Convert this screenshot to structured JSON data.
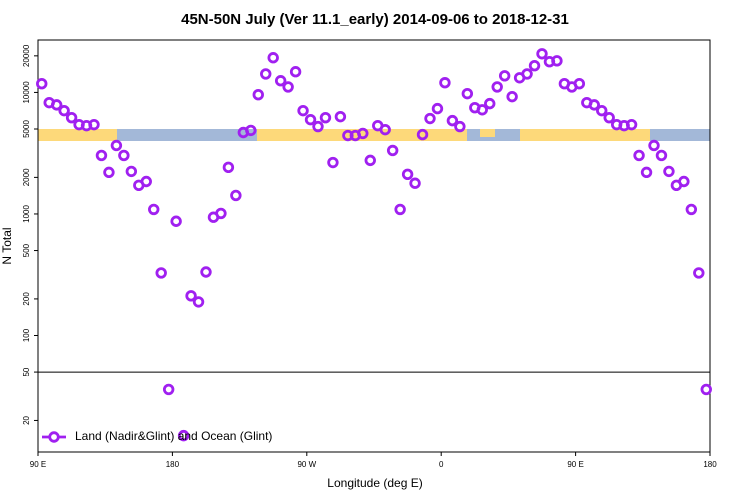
{
  "chart_data": {
    "type": "scatter",
    "title": "45N-50N July (Ver 11.1_early)   2014-09-06 to 2018-12-31",
    "x_label": "Longitude (deg E)",
    "y_label": "N Total",
    "xlim": [
      90,
      540
    ],
    "xticks": [
      {
        "value": 90,
        "label": "90 E"
      },
      {
        "value": 180,
        "label": "180"
      },
      {
        "value": 270,
        "label": "90 W"
      },
      {
        "value": 360,
        "label": "0"
      },
      {
        "value": 450,
        "label": "90 E"
      },
      {
        "value": 540,
        "label": "180"
      }
    ],
    "ylim": [
      11,
      27000
    ],
    "yticks": [
      20,
      50,
      100,
      200,
      500,
      1000,
      2000,
      5000,
      10000,
      20000
    ],
    "log_y": true,
    "reference_line": 50,
    "legend": "bottom-left",
    "series": [
      {
        "name": "Land (Nadir&Glint) and Ocean (Glint)",
        "color": "#a020f0",
        "x": [
          92.5,
          97.5,
          102.5,
          107.5,
          112.5,
          117.5,
          122.5,
          127.5,
          132.5,
          137.5,
          142.5,
          147.5,
          152.5,
          157.5,
          162.5,
          167.5,
          172.5,
          177.5,
          182.5,
          187.5,
          192.5,
          197.5,
          202.5,
          207.5,
          212.5,
          217.5,
          222.5,
          227.5,
          232.5,
          237.5,
          242.5,
          247.5,
          252.5,
          257.5,
          262.5,
          267.5,
          272.5,
          277.5,
          282.5,
          287.5,
          292.5,
          297.5,
          302.5,
          307.5,
          312.5,
          317.5,
          322.5,
          327.5,
          332.5,
          337.5,
          342.5,
          347.5,
          352.5,
          357.5,
          362.5,
          367.5,
          372.5,
          377.5,
          382.5,
          387.5,
          392.5,
          397.5,
          402.5,
          407.5,
          412.5,
          417.5,
          422.5,
          427.5,
          432.5,
          437.5,
          442.5,
          447.5,
          452.5,
          457.5,
          462.5,
          467.5,
          472.5,
          477.5,
          482.5,
          487.5,
          492.5,
          497.5,
          502.5,
          507.5,
          512.5,
          517.5,
          522.5,
          527.5,
          532.5,
          537.5
        ],
        "values": [
          11800,
          8240,
          7900,
          7080,
          6200,
          5430,
          5330,
          5430,
          3030,
          2200,
          3660,
          3030,
          2240,
          1720,
          1850,
          1090,
          327,
          36,
          871,
          15,
          212,
          189,
          333,
          940,
          1010,
          2420,
          1420,
          4680,
          4870,
          9580,
          14200,
          19300,
          12480,
          11100,
          14800,
          7080,
          5970,
          5240,
          6200,
          2650,
          6320,
          4420,
          4420,
          4600,
          2760,
          5330,
          4940,
          3330,
          1090,
          2120,
          1790,
          4500,
          6100,
          7360,
          12020,
          5860,
          5240,
          9770,
          7490,
          7200,
          8090,
          11100,
          13700,
          9230,
          13200,
          14200,
          16600,
          20800,
          17900,
          18200,
          11800,
          11100,
          11800,
          8240,
          7900,
          7080,
          6200,
          5430,
          5330,
          5430,
          3030,
          2200,
          3660,
          3030,
          2240,
          1720,
          1850,
          1090,
          327,
          36
        ]
      }
    ]
  }
}
